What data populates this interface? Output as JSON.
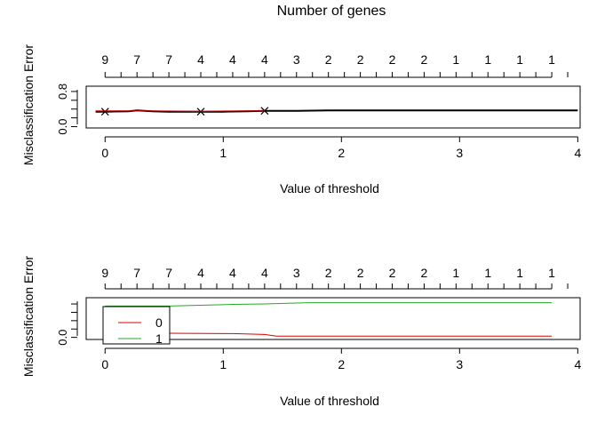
{
  "chart_data": [
    {
      "type": "line",
      "title": "Number of genes",
      "xlabel": "Value of threshold",
      "ylabel": "Misclassification Error",
      "xlim": [
        -0.16,
        4.02
      ],
      "ylim": [
        -0.03,
        0.92
      ],
      "x_ticks": [
        0,
        1,
        2,
        3,
        4
      ],
      "y_ticks": [
        0.0,
        0.8
      ],
      "y_tick_labels": [
        "0.0",
        "0.8"
      ],
      "top_axis_labels": [
        "9",
        "7",
        "7",
        "4",
        "4",
        "4",
        "3",
        "2",
        "2",
        "2",
        "2",
        "1",
        "1",
        "1",
        "1"
      ],
      "top_axis_x": [
        0,
        0.27,
        0.54,
        0.81,
        1.08,
        1.35,
        1.62,
        1.89,
        2.16,
        2.43,
        2.7,
        2.97,
        3.24,
        3.51,
        3.78
      ],
      "grid": false,
      "series": [
        {
          "color": "#000000",
          "marker": "x",
          "marker_x": [
            0,
            0.81,
            1.35
          ],
          "x": [
            -0.08,
            0,
            0.2,
            0.27,
            0.4,
            0.54,
            0.81,
            1.0,
            1.2,
            1.35,
            1.62,
            1.89,
            2.5,
            3.0,
            4.0
          ],
          "y": [
            0.34,
            0.34,
            0.35,
            0.37,
            0.35,
            0.34,
            0.34,
            0.34,
            0.35,
            0.36,
            0.36,
            0.37,
            0.37,
            0.37,
            0.37
          ]
        },
        {
          "color": "#cc0000",
          "x": [
            -0.08,
            0.4,
            0.81,
            1.2,
            1.35
          ],
          "y": [
            0.36,
            0.36,
            0.35,
            0.36,
            0.36
          ]
        }
      ]
    },
    {
      "type": "line",
      "xlabel": "Value of threshold",
      "ylabel": "Misclassification Error",
      "xlim": [
        -0.16,
        4.02
      ],
      "ylim": [
        -0.05,
        0.95
      ],
      "x_ticks": [
        0,
        1,
        2,
        3,
        4
      ],
      "y_ticks": [
        0.0
      ],
      "y_tick_labels": [
        "0.0"
      ],
      "top_axis_labels": [
        "9",
        "7",
        "7",
        "4",
        "4",
        "4",
        "3",
        "2",
        "2",
        "2",
        "2",
        "1",
        "1",
        "1",
        "1"
      ],
      "top_axis_x": [
        0,
        0.27,
        0.54,
        0.81,
        1.08,
        1.35,
        1.62,
        1.89,
        2.16,
        2.43,
        2.7,
        2.97,
        3.24,
        3.51,
        3.78
      ],
      "grid": false,
      "legend": {
        "position": "top-left",
        "entries": [
          "0",
          "1"
        ]
      },
      "series": [
        {
          "name": "0",
          "color": "#dd0000",
          "x": [
            0,
            0.54,
            1.08,
            1.35,
            1.45,
            2.0,
            3.0,
            3.78
          ],
          "y": [
            0.1,
            0.1,
            0.09,
            0.07,
            0.03,
            0.03,
            0.03,
            0.03
          ]
        },
        {
          "name": "1",
          "color": "#22aa22",
          "x": [
            0,
            0.54,
            1.08,
            1.35,
            1.72,
            2.0,
            3.0,
            3.78
          ],
          "y": [
            0.75,
            0.75,
            0.79,
            0.8,
            0.83,
            0.83,
            0.83,
            0.83
          ]
        }
      ]
    }
  ]
}
